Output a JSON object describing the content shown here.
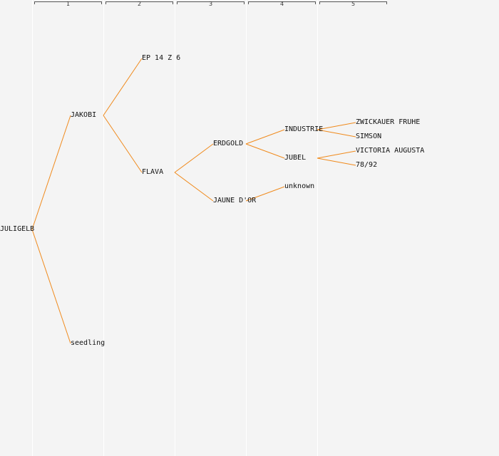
{
  "generations": [
    "1",
    "2",
    "3",
    "4",
    "5"
  ],
  "edge_color": "#f08a1c",
  "tree": {
    "label": "JULIGELB",
    "children": [
      {
        "label": "JAKOBI",
        "children": [
          {
            "label": "EP 14 Z 6"
          },
          {
            "label": "FLAVA",
            "children": [
              {
                "label": "ERDGOLD",
                "children": [
                  {
                    "label": "INDUSTRIE",
                    "children": [
                      {
                        "label": "ZWICKAUER FRUHE"
                      },
                      {
                        "label": "SIMSON"
                      }
                    ]
                  },
                  {
                    "label": "JUBEL",
                    "children": [
                      {
                        "label": "VICTORIA AUGUSTA"
                      },
                      {
                        "label": "78/92"
                      }
                    ]
                  }
                ]
              },
              {
                "label": "JAUNE D'OR",
                "children": [
                  {
                    "label": "unknown"
                  }
                ]
              }
            ]
          }
        ]
      },
      {
        "label": "seedling"
      }
    ]
  }
}
